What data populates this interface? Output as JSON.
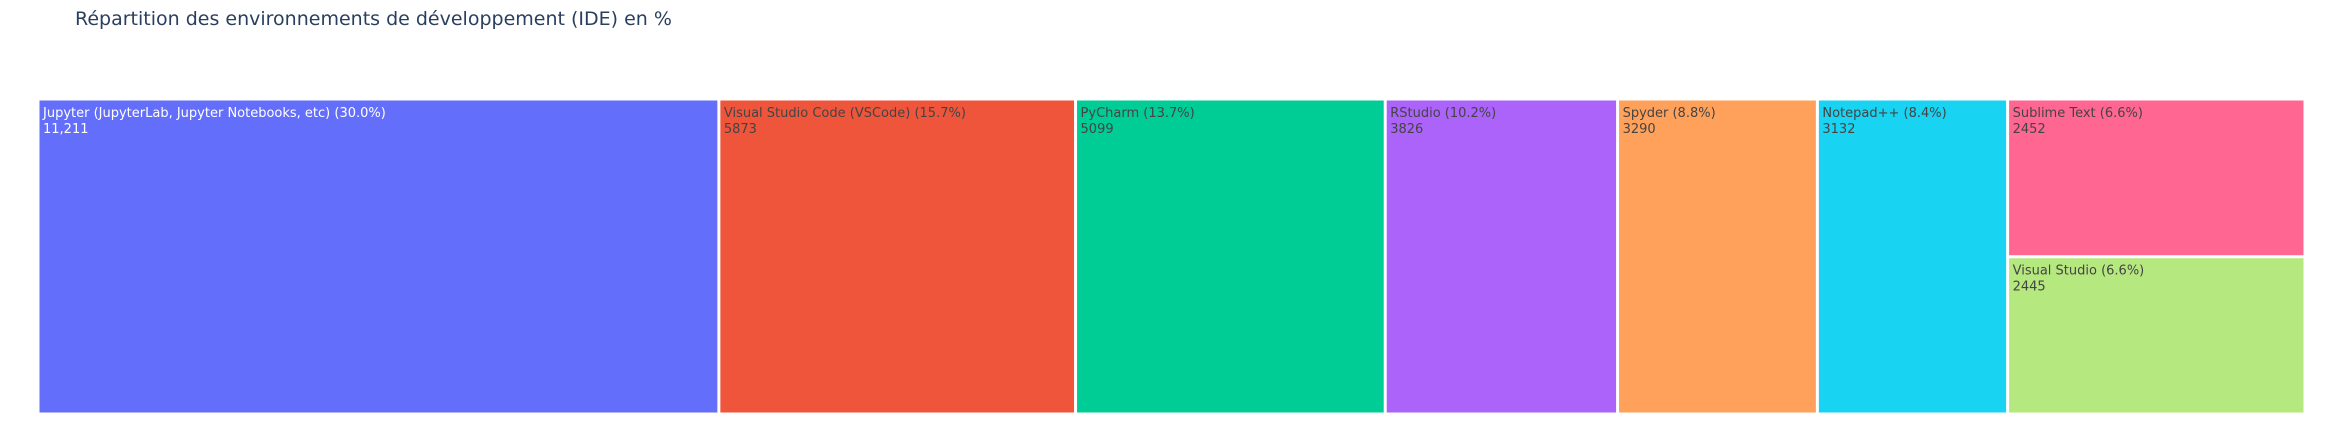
{
  "chart_data": {
    "type": "treemap",
    "title": "Répartition des environnements de développement (IDE) en %",
    "items": [
      {
        "label": "Jupyter (JupyterLab, Jupyter Notebooks, etc)  (30.0%)",
        "value": 11211,
        "value_text": "11,211",
        "color": "#636efa",
        "text_color": "#ffffff"
      },
      {
        "label": "Visual Studio Code (VSCode) (15.7%)",
        "value": 5873,
        "value_text": "5873",
        "color": "#ef553b",
        "text_color": "#444444"
      },
      {
        "label": " PyCharm  (13.7%)",
        "value": 5099,
        "value_text": "5099",
        "color": "#00cc96",
        "text_color": "#444444"
      },
      {
        "label": " RStudio  (10.2%)",
        "value": 3826,
        "value_text": "3826",
        "color": "#ab63fa",
        "text_color": "#444444"
      },
      {
        "label": "  Spyder   (8.8%)",
        "value": 3290,
        "value_text": "3290",
        "color": "#ffa15a",
        "text_color": "#444444"
      },
      {
        "label": "  Notepad++   (8.4%)",
        "value": 3132,
        "value_text": "3132",
        "color": "#19d3f3",
        "text_color": "#444444"
      },
      {
        "label": "  Sublime Text   (6.6%)",
        "value": 2452,
        "value_text": "2452",
        "color": "#ff6692",
        "text_color": "#444444"
      },
      {
        "label": "Visual Studio (6.6%)",
        "value": 2445,
        "value_text": "2445",
        "color": "#b6e880",
        "text_color": "#444444"
      }
    ]
  }
}
